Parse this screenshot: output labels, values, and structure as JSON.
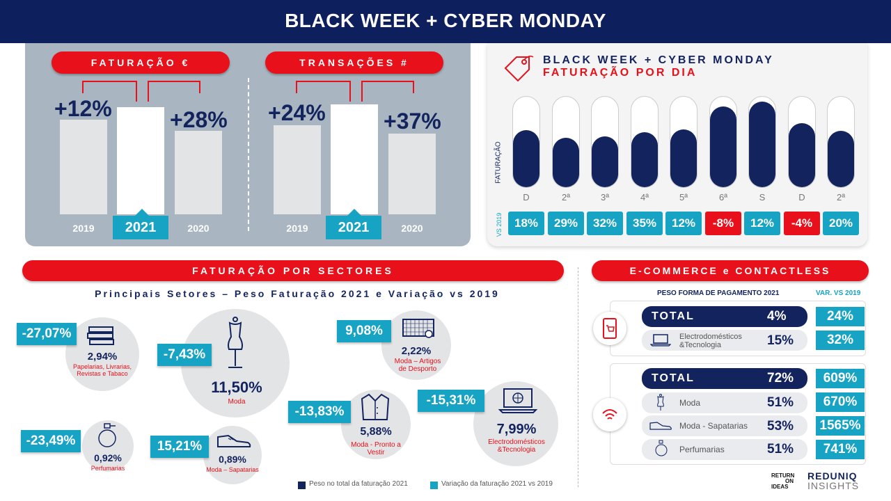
{
  "header": {
    "title": "BLACK WEEK + CYBER MONDAY"
  },
  "faturacao": {
    "pill": "FATURAÇÃO €",
    "left_pct": "+12%",
    "right_pct": "+28%",
    "years": [
      "2019",
      "2021",
      "2020"
    ]
  },
  "transacoes": {
    "pill": "TRANSAÇÕES #",
    "left_pct": "+24%",
    "right_pct": "+37%",
    "years": [
      "2019",
      "2021",
      "2020"
    ]
  },
  "daily": {
    "title": "BLACK WEEK + CYBER MONDAY",
    "subtitle": "FATURAÇÃO POR DIA",
    "ylabel": "FATURAÇÃO",
    "vs_label": "VS 2019",
    "accent_color": "#16a3c4",
    "negative_color": "#e8101a",
    "bar_color": "#13235e"
  },
  "chart_data": {
    "type": "bar",
    "categories": [
      "D",
      "2ª",
      "3ª",
      "4ª",
      "5ª",
      "6ª",
      "S",
      "D",
      "2ª"
    ],
    "values": [
      0.62,
      0.54,
      0.55,
      0.6,
      0.63,
      0.88,
      0.93,
      0.7,
      0.61
    ],
    "variation": [
      "18%",
      "29%",
      "32%",
      "35%",
      "12%",
      "-8%",
      "12%",
      "-4%",
      "20%"
    ],
    "variation_negative": [
      false,
      false,
      false,
      false,
      false,
      true,
      false,
      true,
      false
    ],
    "xlabel": "",
    "ylabel": "FATURAÇÃO"
  },
  "sectores": {
    "pill": "FATURAÇÃO POR SECTORES",
    "subtitle": "Principais Setores – Peso Faturação 2021 e Variação vs 2019",
    "items": [
      {
        "var": "-27,07%",
        "pct": "2,94%",
        "name": "Papelarias, Livrarias, Revistas e Tabaco",
        "icon": "books-icon"
      },
      {
        "var": "-7,43%",
        "pct": "11,50%",
        "name": "Moda",
        "icon": "mannequin-icon"
      },
      {
        "var": "9,08%",
        "pct": "2,22%",
        "name": "Moda – Artigos de Desporto",
        "icon": "goal-icon"
      },
      {
        "var": "-15,31%",
        "pct": "7,99%",
        "name": "Electrodomésticos &Tecnologia",
        "icon": "laptop-icon"
      },
      {
        "var": "-13,83%",
        "pct": "5,88%",
        "name": "Moda - Pronto a Vestir",
        "icon": "jacket-icon"
      },
      {
        "var": "-23,49%",
        "pct": "0,92%",
        "name": "Perfumarias",
        "icon": "perfume-icon"
      },
      {
        "var": "15,21%",
        "pct": "0,89%",
        "name": "Moda – Sapatarias",
        "icon": "shoe-icon"
      }
    ],
    "legend": [
      "Peso no total da faturação 2021",
      "Variação da faturação 2021 vs 2019"
    ]
  },
  "ecommerce": {
    "pill": "E-COMMERCE e CONTACTLESS",
    "col_peso": "PESO FORMA DE PAGAMENTO 2021",
    "col_var": "VAR. VS 2019",
    "ecom_rows": [
      {
        "name": "TOTAL",
        "pct": "4%",
        "var": "24%"
      },
      {
        "name": "Electrodomésticos &Tecnologia",
        "pct": "15%",
        "var": "32%"
      }
    ],
    "contactless_rows": [
      {
        "name": "TOTAL",
        "pct": "72%",
        "var": "609%"
      },
      {
        "name": "Moda",
        "pct": "51%",
        "var": "670%"
      },
      {
        "name": "Moda - Sapatarias",
        "pct": "53%",
        "var": "1565%"
      },
      {
        "name": "Perfumarias",
        "pct": "51%",
        "var": "741%"
      }
    ]
  },
  "logos": {
    "roi_line1": "RETURN",
    "roi_line2": "ON",
    "roi_line3": "IDEAS",
    "reduniq_line1": "REDUNIQ",
    "reduniq_line2": "INSIGHTS"
  }
}
